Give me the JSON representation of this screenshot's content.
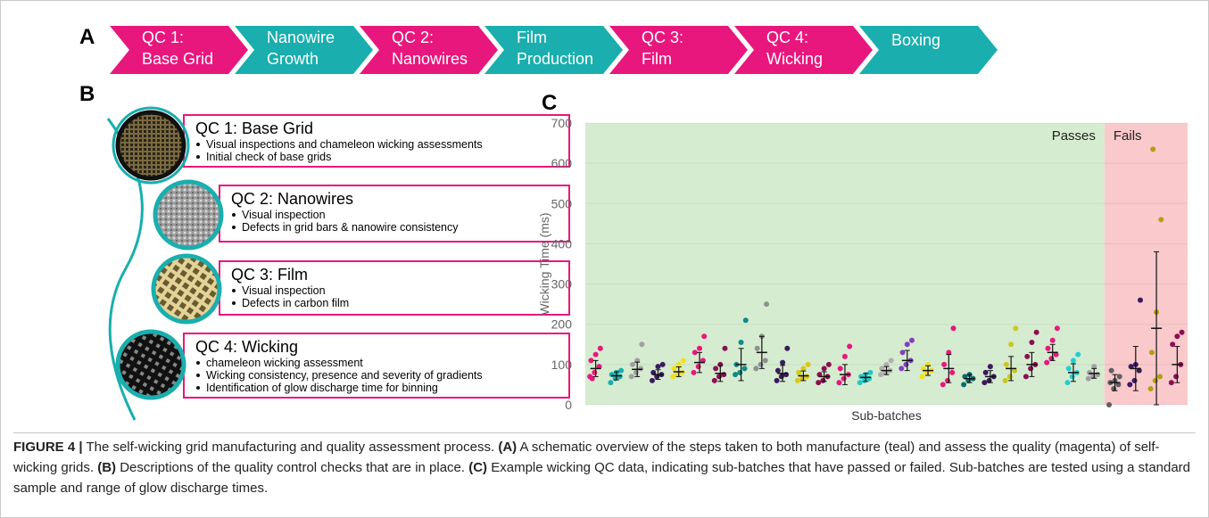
{
  "panel_labels": [
    "A",
    "B",
    "C"
  ],
  "flow": [
    {
      "lines": [
        "QC 1:",
        "Base Grid"
      ],
      "color": "#e8177d"
    },
    {
      "lines": [
        "Nanowire",
        "Growth"
      ],
      "color": "#1aaeae"
    },
    {
      "lines": [
        "QC 2:",
        "Nanowires"
      ],
      "color": "#e8177d"
    },
    {
      "lines": [
        "Film",
        "Production"
      ],
      "color": "#1aaeae"
    },
    {
      "lines": [
        "QC 3:",
        "Film"
      ],
      "color": "#e8177d"
    },
    {
      "lines": [
        "QC 4:",
        "Wicking"
      ],
      "color": "#e8177d"
    },
    {
      "lines": [
        "Boxing"
      ],
      "color": "#1aaeae"
    }
  ],
  "checks": [
    {
      "title": "QC 1: Base Grid",
      "bullets": [
        "Visual inspections and chameleon wicking assessments",
        "Initial check of base grids"
      ]
    },
    {
      "title": "QC 2: Nanowires",
      "bullets": [
        "Visual inspection",
        "Defects in grid bars & nanowire consistency"
      ]
    },
    {
      "title": "QC 3: Film",
      "bullets": [
        "Visual inspection",
        "Defects in carbon film"
      ]
    },
    {
      "title": "QC 4: Wicking",
      "bullets": [
        "chameleon wicking assessment",
        "Wicking consistency, presence and severity of gradients",
        "Identification of glow discharge time for binning"
      ]
    }
  ],
  "chart_data": {
    "type": "strip",
    "ylabel": "Wicking Time (ms)",
    "xlabel": "Sub-batches",
    "ylim": [
      0,
      700
    ],
    "yticks": [
      0,
      100,
      200,
      300,
      400,
      500,
      600,
      700
    ],
    "grid": true,
    "regions": [
      {
        "label": "Passes",
        "color": "#d6ecd0",
        "count": 25
      },
      {
        "label": "Fails",
        "color": "#f9c9cc",
        "count": 4
      }
    ],
    "groups": [
      {
        "color": "#e8177d",
        "points": [
          70,
          80,
          95,
          110,
          125,
          140,
          65
        ],
        "mean": 90,
        "error": 20
      },
      {
        "color": "#1aaeae",
        "points": [
          55,
          65,
          70,
          75,
          80,
          85
        ],
        "mean": 72,
        "error": 10
      },
      {
        "color": "#a0a0a0",
        "points": [
          70,
          80,
          90,
          100,
          110,
          150
        ],
        "mean": 88,
        "error": 18
      },
      {
        "color": "#3b1a5e",
        "points": [
          60,
          70,
          75,
          80,
          95,
          100
        ],
        "mean": 75,
        "error": 12
      },
      {
        "color": "#f0e020",
        "points": [
          70,
          75,
          80,
          90,
          100,
          110
        ],
        "mean": 82,
        "error": 12
      },
      {
        "color": "#e8177d",
        "points": [
          80,
          95,
          110,
          130,
          140,
          170
        ],
        "mean": 105,
        "error": 25
      },
      {
        "color": "#8a1050",
        "points": [
          60,
          70,
          75,
          90,
          100,
          140
        ],
        "mean": 78,
        "error": 20
      },
      {
        "color": "#0f8a8a",
        "points": [
          75,
          80,
          90,
          100,
          155,
          210
        ],
        "mean": 100,
        "error": 40
      },
      {
        "color": "#909090",
        "points": [
          90,
          100,
          110,
          140,
          170,
          250
        ],
        "mean": 130,
        "error": 40
      },
      {
        "color": "#3b1a5e",
        "points": [
          60,
          70,
          75,
          85,
          105,
          140
        ],
        "mean": 78,
        "error": 20
      },
      {
        "color": "#d8c818",
        "points": [
          60,
          65,
          70,
          80,
          90,
          100
        ],
        "mean": 72,
        "error": 12
      },
      {
        "color": "#8a1050",
        "points": [
          55,
          60,
          70,
          75,
          90,
          100
        ],
        "mean": 70,
        "error": 12
      },
      {
        "color": "#e8177d",
        "points": [
          55,
          65,
          75,
          90,
          120,
          145
        ],
        "mean": 75,
        "error": 25
      },
      {
        "color": "#20c8c8",
        "points": [
          55,
          60,
          65,
          70,
          75,
          80
        ],
        "mean": 68,
        "error": 10
      },
      {
        "color": "#b0b0b0",
        "points": [
          75,
          80,
          85,
          90,
          100,
          110
        ],
        "mean": 85,
        "error": 10
      },
      {
        "color": "#8040c0",
        "points": [
          90,
          100,
          110,
          130,
          150,
          160
        ],
        "mean": 110,
        "error": 25
      },
      {
        "color": "#f0e020",
        "points": [
          70,
          80,
          85,
          90,
          100
        ],
        "mean": 85,
        "error": 12
      },
      {
        "color": "#e8177d",
        "points": [
          50,
          60,
          80,
          100,
          130,
          190
        ],
        "mean": 90,
        "error": 35
      },
      {
        "color": "#0b6e6e",
        "points": [
          50,
          60,
          65,
          70,
          75
        ],
        "mean": 65,
        "error": 10
      },
      {
        "color": "#3b1a5e",
        "points": [
          55,
          60,
          70,
          80,
          95
        ],
        "mean": 70,
        "error": 15
      },
      {
        "color": "#c8c820",
        "points": [
          60,
          70,
          85,
          100,
          150,
          190
        ],
        "mean": 90,
        "error": 30
      },
      {
        "color": "#8a1050",
        "points": [
          70,
          90,
          100,
          120,
          155,
          180
        ],
        "mean": 100,
        "error": 30
      },
      {
        "color": "#e8177d",
        "points": [
          105,
          115,
          125,
          140,
          160,
          190
        ],
        "mean": 130,
        "error": 20
      },
      {
        "color": "#20d0d0",
        "points": [
          55,
          70,
          80,
          90,
          110,
          125
        ],
        "mean": 80,
        "error": 22
      },
      {
        "color": "#a0a0a0",
        "points": [
          65,
          70,
          75,
          80,
          95
        ],
        "mean": 78,
        "error": 12
      },
      {
        "color": "#606060",
        "points": [
          0,
          40,
          50,
          55,
          60,
          70,
          85
        ],
        "mean": 55,
        "error": 20
      },
      {
        "color": "#3b1a5e",
        "points": [
          50,
          60,
          85,
          95,
          100,
          260
        ],
        "mean": 90,
        "error": 55
      },
      {
        "color": "#b0a010",
        "points": [
          40,
          60,
          70,
          130,
          230,
          460,
          635
        ],
        "mean": 190,
        "error": 190
      },
      {
        "color": "#8a1050",
        "points": [
          55,
          70,
          100,
          150,
          170,
          180
        ],
        "mean": 100,
        "error": 45
      }
    ]
  },
  "caption": [
    "FIGURE 4 |",
    " The self-wicking grid manufacturing and quality assessment process. ",
    "(A)",
    " A schematic overview of the steps taken to both manufacture (teal) and assess the quality (magenta) of self-wicking grids. ",
    "(B)",
    " Descriptions of the quality control checks that are in place. ",
    "(C)",
    " Example wicking QC data, indicating sub-batches that have passed or failed. Sub-batches are tested using a standard sample and range of glow discharge times."
  ]
}
